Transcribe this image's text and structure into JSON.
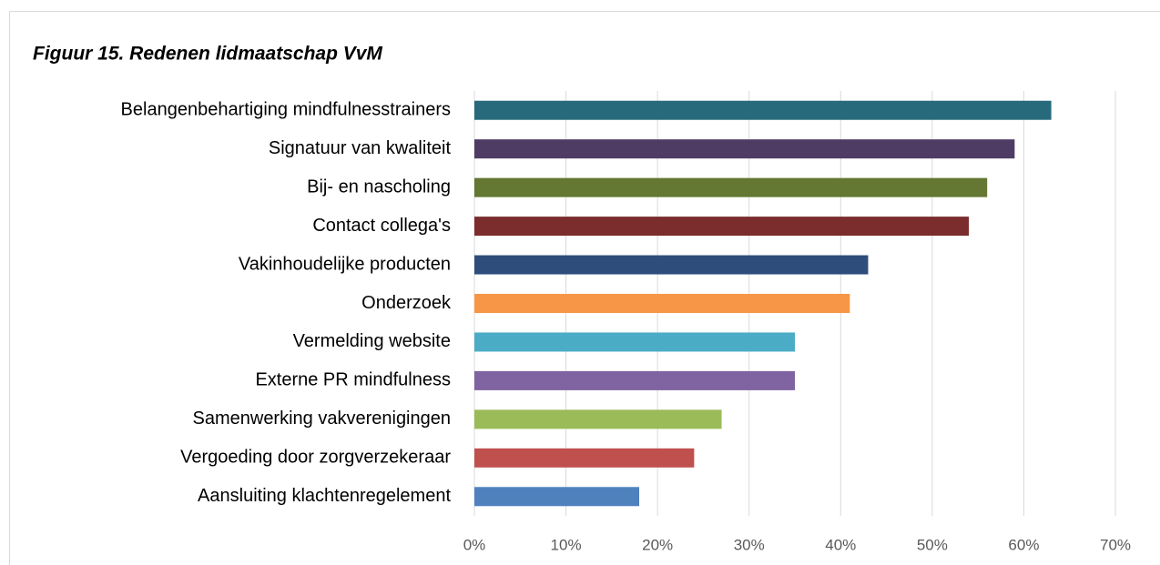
{
  "chart_data": {
    "type": "bar",
    "orientation": "horizontal",
    "title": "Figuur 15. Redenen lidmaatschap VvM",
    "categories": [
      "Belangenbehartiging mindfulnesstrainers",
      "Signatuur van kwaliteit",
      "Bij- en nascholing",
      "Contact collega's",
      "Vakinhoudelijke producten",
      "Onderzoek",
      "Vermelding website",
      "Externe PR mindfulness",
      "Samenwerking vakverenigingen",
      "Vergoeding door zorgverzekeraar",
      "Aansluiting klachtenregelement"
    ],
    "values": [
      63,
      59,
      56,
      54,
      43,
      41,
      35,
      35,
      27,
      24,
      18
    ],
    "colors": [
      "#276a7c",
      "#4f3c64",
      "#647733",
      "#7b2c2c",
      "#2e4d7b",
      "#f79646",
      "#4bacc6",
      "#8064a2",
      "#9bbb59",
      "#c0504d",
      "#4f81bd"
    ],
    "xlim": [
      0,
      70
    ],
    "xticks": [
      {
        "value": 0,
        "label": "0%"
      },
      {
        "value": 10,
        "label": "10%"
      },
      {
        "value": 20,
        "label": "20%"
      },
      {
        "value": 30,
        "label": "30%"
      },
      {
        "value": 40,
        "label": "40%"
      },
      {
        "value": 50,
        "label": "50%"
      },
      {
        "value": 60,
        "label": "60%"
      },
      {
        "value": 70,
        "label": "70%"
      }
    ],
    "grid": true
  }
}
